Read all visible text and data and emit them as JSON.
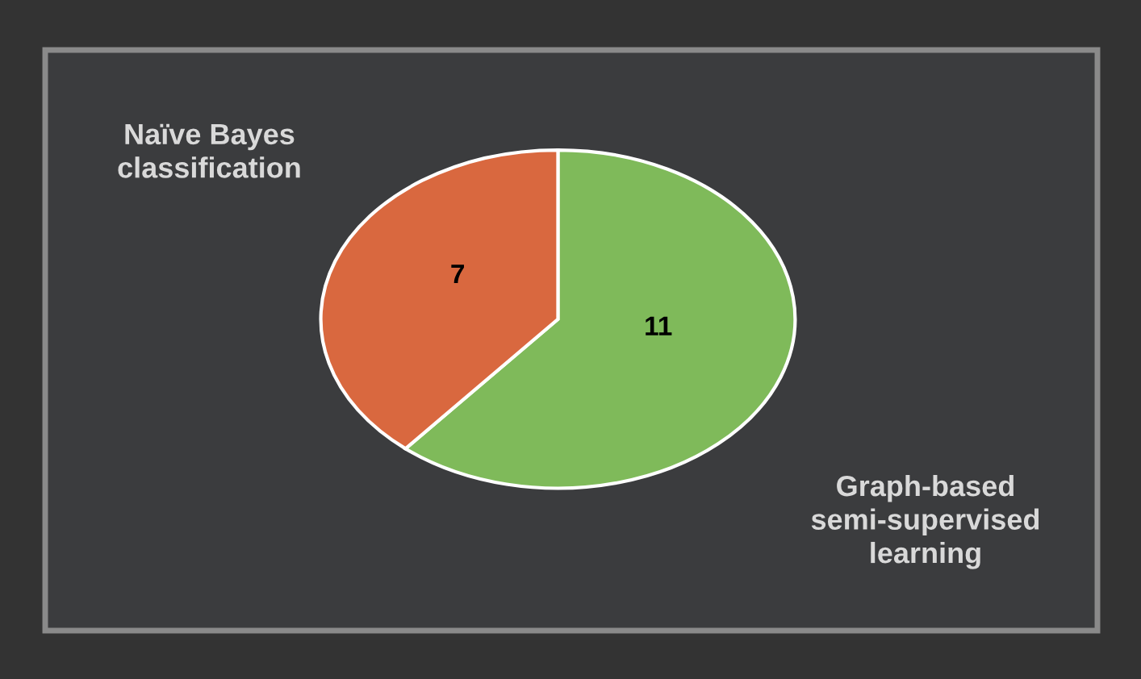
{
  "chart_data": {
    "type": "pie",
    "categories": [
      "Graph-based\nsemi-supervised\nlearning",
      "Naïve Bayes\nclassification"
    ],
    "values": [
      11,
      7
    ],
    "colors": [
      "#7fba5a",
      "#d9683f"
    ],
    "data_labels": true,
    "legend": false
  }
}
